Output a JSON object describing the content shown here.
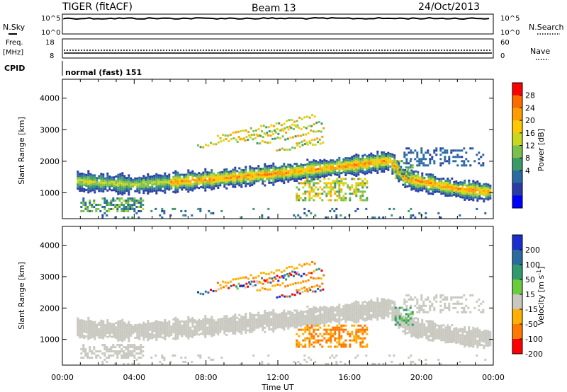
{
  "header": {
    "station": "TIGER (fitACF)",
    "beam": "Beam 13",
    "date": "24/Oct/2013"
  },
  "status_panels": {
    "nsky": {
      "label": "N.Sky",
      "ticks": [
        "10^5",
        "10^0"
      ],
      "right_label": "N.Search",
      "right_ticks": [
        "10^5",
        "10^0"
      ]
    },
    "freq": {
      "label_top": "Freq.",
      "label_bottom": "[MHz]",
      "ticks": [
        "18",
        "8"
      ],
      "right_label": "Nave",
      "right_ticks": [
        "60",
        "0"
      ]
    },
    "cpid": {
      "label": "CPID",
      "value": "normal (fast) 151"
    }
  },
  "x_axis": {
    "label": "Time UT",
    "ticks": [
      "00:00",
      "04:00",
      "08:00",
      "12:00",
      "16:00",
      "20:00",
      "00:00"
    ]
  },
  "power_colorbar": {
    "label": "Power [dB]",
    "ticks": [
      "28",
      "24",
      "20",
      "16",
      "12",
      "8",
      "4"
    ],
    "colors": [
      "#ff0000",
      "#ff6a00",
      "#ff9c00",
      "#ffc800",
      "#c8d81e",
      "#7ac04c",
      "#3c9a6a",
      "#2a6aa0",
      "#2a3aa6",
      "#0000ff"
    ]
  },
  "velocity_colorbar": {
    "label": "Velocity [m s^-1]",
    "ticks": [
      "200",
      "100",
      "50",
      "15",
      "-15",
      "-50",
      "-100",
      "-200"
    ],
    "colors": [
      "#1a2ed0",
      "#2a6aa0",
      "#2e9a6e",
      "#6acc3c",
      "#c8c8c0",
      "#ffb000",
      "#ff7800",
      "#ff0000"
    ]
  },
  "chart_data": [
    {
      "type": "heatmap",
      "name": "Power",
      "xlabel": "Time UT",
      "ylabel": "Slant Range [km]",
      "x_unit": "hours UT",
      "xlim": [
        0,
        24
      ],
      "ylim": [
        180,
        4600
      ],
      "yticks": [
        1000,
        2000,
        3000,
        4000
      ],
      "colorbar_label": "Power [dB]",
      "colorbar_range": [
        0,
        30
      ],
      "features": [
        {
          "region": "main F-region scatter band",
          "time_hours": [
            0.8,
            24
          ],
          "range_km_approx": [
            [
              0.8,
              1400
            ],
            [
              4,
              1300
            ],
            [
              8,
              1450
            ],
            [
              12,
              1650
            ],
            [
              16,
              1900
            ],
            [
              18.2,
              2050
            ],
            [
              19,
              1500
            ],
            [
              22,
              1150
            ],
            [
              24,
              1050
            ]
          ],
          "peak_power_dB": 28
        },
        {
          "region": "near-range patch",
          "time_hours": [
            1,
            4.5
          ],
          "range_km": [
            450,
            900
          ],
          "peak_power_dB": 16
        },
        {
          "region": "upper echo streaks",
          "time_hours": [
            7.5,
            14.5
          ],
          "range_km": [
            2200,
            3500
          ],
          "peak_power_dB": 24
        },
        {
          "region": "lower mid-day patch",
          "time_hours": [
            13,
            17
          ],
          "range_km": [
            800,
            1500
          ],
          "peak_power_dB": 24
        },
        {
          "region": "late upper band",
          "time_hours": [
            19,
            23.5
          ],
          "range_km": [
            1900,
            2500
          ],
          "peak_power_dB": 8
        }
      ]
    },
    {
      "type": "heatmap",
      "name": "Velocity",
      "xlabel": "Time UT",
      "ylabel": "Slant Range [km]",
      "x_unit": "hours UT",
      "xlim": [
        0,
        24
      ],
      "ylim": [
        180,
        4600
      ],
      "yticks": [
        1000,
        2000,
        3000,
        4000
      ],
      "colorbar_label": "Velocity [m s^-1]",
      "colorbar_range": [
        -200,
        200
      ],
      "features": [
        {
          "region": "ground scatter band",
          "time_hours": [
            0.8,
            24
          ],
          "velocity_m_s": [
            -15,
            15
          ]
        },
        {
          "region": "upper echoes",
          "time_hours": [
            8,
            14
          ],
          "range_km": [
            2500,
            3500
          ],
          "velocity_m_s": [
            -200,
            200
          ]
        },
        {
          "region": "mid-day negative patch",
          "time_hours": [
            13.5,
            17.5
          ],
          "range_km": [
            800,
            1500
          ],
          "velocity_m_s": [
            -100,
            -15
          ]
        },
        {
          "region": "positive patch near 19 UT",
          "time_hours": [
            18.5,
            19.5
          ],
          "range_km": [
            1500,
            2100
          ],
          "velocity_m_s": [
            15,
            50
          ]
        }
      ]
    }
  ]
}
